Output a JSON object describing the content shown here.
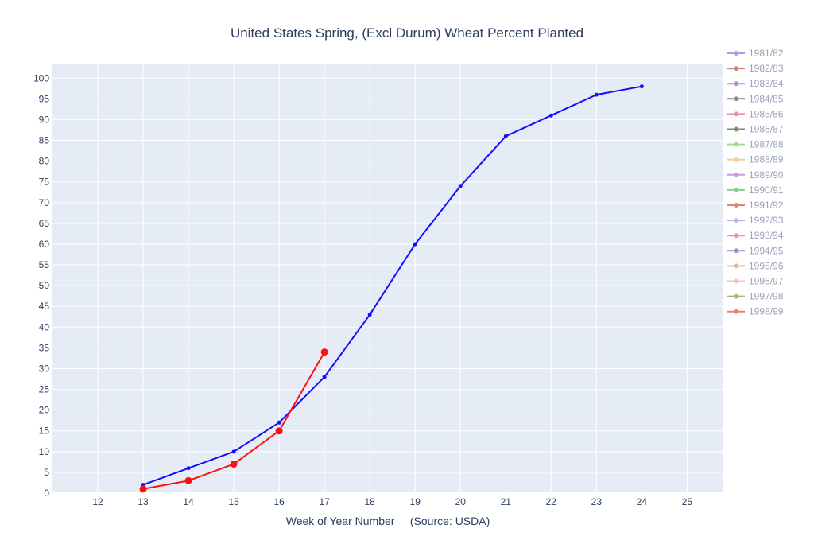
{
  "chart_data": {
    "type": "line",
    "title": "United States Spring, (Excl Durum) Wheat Percent Planted",
    "xlabel": "Week of Year Number     (Source: USDA)",
    "ylabel": "",
    "xlim": [
      11.0,
      25.8
    ],
    "ylim": [
      0,
      103.5
    ],
    "x_ticks": [
      12,
      13,
      14,
      15,
      16,
      17,
      18,
      19,
      20,
      21,
      22,
      23,
      24,
      25
    ],
    "y_ticks": [
      0,
      5,
      10,
      15,
      20,
      25,
      30,
      35,
      40,
      45,
      50,
      55,
      60,
      65,
      70,
      75,
      80,
      85,
      90,
      95,
      100
    ],
    "grid": true,
    "legend_position": "right",
    "plot_background": "#e5ecf6",
    "series": [
      {
        "name": "1981/82",
        "color": "#9aa6e6",
        "x": [],
        "y": []
      },
      {
        "name": "1982/83",
        "color": "#c9877c",
        "x": [],
        "y": []
      },
      {
        "name": "1983/84",
        "color": "#a98fd6",
        "x": [],
        "y": []
      },
      {
        "name": "1984/85",
        "color": "#8c8c8c",
        "x": [],
        "y": []
      },
      {
        "name": "1985/86",
        "color": "#e68ab8",
        "x": [],
        "y": []
      },
      {
        "name": "1986/87",
        "color": "#6f8f6f",
        "x": [],
        "y": []
      },
      {
        "name": "1987/88",
        "color": "#9ee08a",
        "x": [],
        "y": []
      },
      {
        "name": "1988/89",
        "color": "#f2cda0",
        "x": [],
        "y": []
      },
      {
        "name": "1989/90",
        "color": "#c39be0",
        "x": [],
        "y": []
      },
      {
        "name": "1990/91",
        "color": "#7fd48a",
        "x": [],
        "y": []
      },
      {
        "name": "1991/92",
        "color": "#e0876a",
        "x": [],
        "y": []
      },
      {
        "name": "1992/93",
        "color": "#b7b7e0",
        "x": [],
        "y": []
      },
      {
        "name": "1993/94",
        "color": "#f08ac0",
        "x": [],
        "y": []
      },
      {
        "name": "1994/95",
        "color": "#8f8fd0",
        "x": [],
        "y": []
      },
      {
        "name": "1995/96",
        "color": "#f0b08a",
        "x": [],
        "y": []
      },
      {
        "name": "1996/97",
        "color": "#f2c0c0",
        "x": [],
        "y": []
      },
      {
        "name": "1997/98",
        "color": "#a8b878",
        "x": [],
        "y": []
      },
      {
        "name": "1998/99",
        "color": "#f07a7a",
        "x": [],
        "y": []
      },
      {
        "name": "",
        "color": "#1010ff",
        "show_in_legend": false,
        "marker_size": 2.5,
        "x": [
          13,
          14,
          15,
          16,
          17,
          18,
          19,
          20,
          21,
          22,
          23,
          24
        ],
        "y": [
          2,
          6,
          10,
          17,
          28,
          43,
          60,
          74,
          86,
          91,
          96,
          98
        ]
      },
      {
        "name": "",
        "color": "#ff1010",
        "show_in_legend": false,
        "marker_size": 4.5,
        "x": [
          13,
          14,
          15,
          16,
          17
        ],
        "y": [
          1,
          3,
          7,
          15,
          34
        ]
      }
    ]
  }
}
